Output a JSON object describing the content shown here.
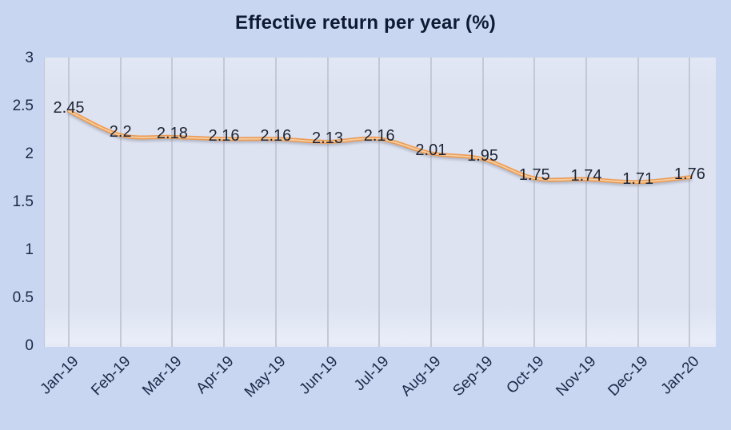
{
  "title": "Effective return per year (%)",
  "chart_data": {
    "type": "line",
    "title": "Effective return per year (%)",
    "categories": [
      "Jan-19",
      "Feb-19",
      "Mar-19",
      "Apr-19",
      "May-19",
      "Jun-19",
      "Jul-19",
      "Aug-19",
      "Sep-19",
      "Oct-19",
      "Nov-19",
      "Dec-19",
      "Jan-20"
    ],
    "series": [
      {
        "name": "Effective return per year (%)",
        "values": [
          2.45,
          2.2,
          2.18,
          2.16,
          2.16,
          2.13,
          2.16,
          2.01,
          1.95,
          1.75,
          1.74,
          1.71,
          1.76
        ]
      }
    ],
    "data_labels": [
      "2.45",
      "2.2",
      "2.18",
      "2.16",
      "2.16",
      "2.13",
      "2.16",
      "2.01",
      "1.95",
      "1.75",
      "1.74",
      "1.71",
      "1.76"
    ],
    "y_ticks": [
      "3",
      "2.5",
      "2",
      "1.5",
      "1",
      "0.5",
      "0"
    ],
    "y_tick_values": [
      3,
      2.5,
      2,
      1.5,
      1,
      0.5,
      0
    ],
    "ylim": [
      0,
      3
    ],
    "xlabel": "",
    "ylabel": "",
    "legend": "none",
    "grid": "vertical-only",
    "line_smoothing": true,
    "colors": {
      "background": "#c9d6f1",
      "plot_background": "#dee3f2",
      "gridline": "#c3c9d6",
      "line": "#EA9B55",
      "line_highlight": "#F6CEA0",
      "title_text": "#0f1a33",
      "tick_text": "#1b2a4a",
      "data_label_text": "#1d2433"
    }
  }
}
